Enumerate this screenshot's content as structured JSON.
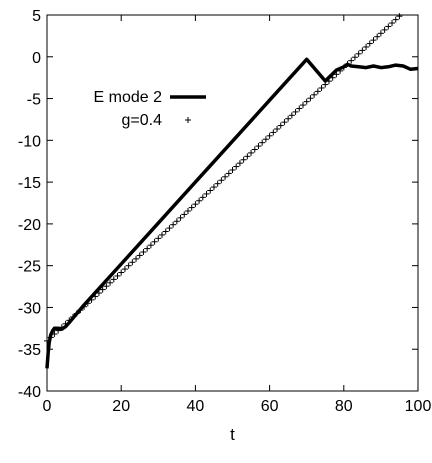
{
  "chart_data": {
    "type": "line",
    "title": "",
    "xlabel": "t",
    "ylabel": "",
    "xlim": [
      0,
      100
    ],
    "ylim": [
      -40,
      5
    ],
    "xticks": [
      0,
      20,
      40,
      60,
      80,
      100
    ],
    "yticks": [
      -40,
      -35,
      -30,
      -25,
      -20,
      -15,
      -10,
      -5,
      0,
      5
    ],
    "grid": false,
    "legend_position": "top-left",
    "series": [
      {
        "name": "E mode 2",
        "style": "line",
        "color": "#000000",
        "x": [
          0,
          0.3,
          0.6,
          1.0,
          1.5,
          2.0,
          3.0,
          4.0,
          5.0,
          6.0,
          10,
          20,
          30,
          40,
          50,
          60,
          70,
          75,
          78,
          80,
          81,
          82,
          84,
          86,
          88,
          90,
          92,
          94,
          96,
          98,
          100
        ],
        "y": [
          -37.3,
          -35.5,
          -34.2,
          -33.3,
          -32.8,
          -32.5,
          -32.5,
          -32.6,
          -32.3,
          -31.8,
          -29.7,
          -24.8,
          -19.9,
          -15.0,
          -10.1,
          -5.2,
          -0.3,
          -2.9,
          -1.6,
          -1.2,
          -0.9,
          -1.1,
          -1.2,
          -1.3,
          -1.1,
          -1.3,
          -1.2,
          -1.0,
          -1.1,
          -1.5,
          -1.4
        ]
      },
      {
        "name": "g=0.4",
        "style": "markers",
        "marker": "+",
        "color": "#000000",
        "x_start": 0,
        "x_end": 96,
        "x_step": 1,
        "y_intercept": -34.0,
        "slope": 0.409
      }
    ]
  }
}
